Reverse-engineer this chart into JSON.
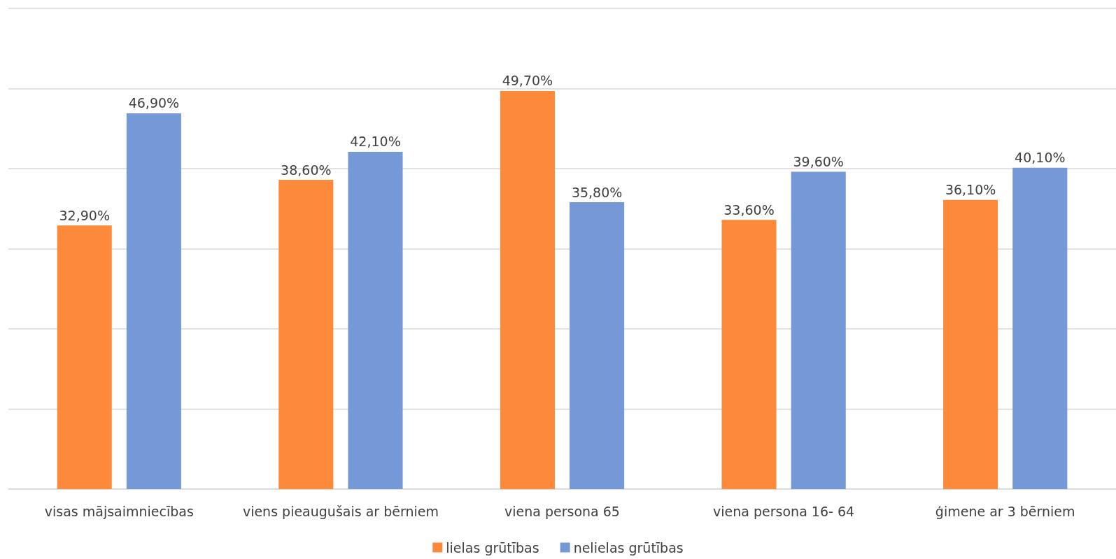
{
  "chart_data": {
    "type": "bar",
    "categories": [
      "visas mājsaimniecības",
      "viens pieaugušais ar bērniem",
      "viena persona 65",
      "viena persona 16- 64",
      "ģimene ar 3 bērniem"
    ],
    "series": [
      {
        "name": "lielas grūtības",
        "color": "#fd8a3a",
        "values": [
          32.9,
          38.6,
          49.7,
          33.6,
          36.1
        ],
        "value_labels": [
          "32,90%",
          "38,60%",
          "49,70%",
          "33,60%",
          "36,10%"
        ]
      },
      {
        "name": "nelielas grūtības",
        "color": "#7599d7",
        "values": [
          46.9,
          42.1,
          35.8,
          39.6,
          40.1
        ],
        "value_labels": [
          "46,90%",
          "42,10%",
          "35,80%",
          "39,60%",
          "40,10%"
        ]
      }
    ],
    "ylim": [
      0,
      60
    ],
    "yticks": [
      {
        "value": 0,
        "label": null
      },
      {
        "value": 10,
        "label": null
      },
      {
        "value": 20,
        "label": null
      },
      {
        "value": 30,
        "label": null
      },
      {
        "value": 40,
        "label": null
      },
      {
        "value": 50,
        "label": null
      },
      {
        "value": 60,
        "label": null
      }
    ],
    "tick_labels": "x",
    "grid": "y",
    "legend": "bottom"
  }
}
